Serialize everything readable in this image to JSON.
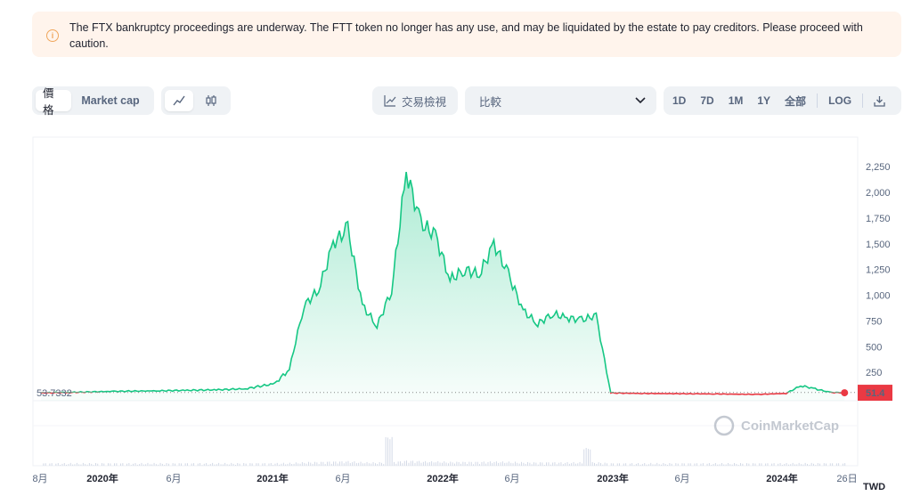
{
  "notice": {
    "icon": "info-icon",
    "text": "The FTX bankruptcy proceedings are underway. The FTT token no longer has any use, and may be liquidated by the estate to pay creditors. Please proceed with caution."
  },
  "toolbar": {
    "price_tab": "價格",
    "marketcap_tab": "Market cap",
    "line_icon": "line-chart-icon",
    "candle_icon": "candlestick-icon",
    "tradingview_label": "交易檢視",
    "compare_label": "比較",
    "ranges": [
      "1D",
      "7D",
      "1M",
      "1Y",
      "全部"
    ],
    "log_label": "LOG",
    "download_icon": "download-icon"
  },
  "chart_data": {
    "type": "line",
    "currency": "TWD",
    "watermark": "CoinMarketCap",
    "y_ticks": [
      "2,250",
      "2,000",
      "1,750",
      "1,500",
      "1,250",
      "1,000",
      "750",
      "500",
      "250"
    ],
    "x_ticks": [
      {
        "label": "8月",
        "bold": false
      },
      {
        "label": "2020年",
        "bold": true
      },
      {
        "label": "6月",
        "bold": false
      },
      {
        "label": "2021年",
        "bold": true
      },
      {
        "label": "6月",
        "bold": false
      },
      {
        "label": "2022年",
        "bold": true
      },
      {
        "label": "6月",
        "bold": false
      },
      {
        "label": "2023年",
        "bold": true
      },
      {
        "label": "6月",
        "bold": false
      },
      {
        "label": "2024年",
        "bold": true
      },
      {
        "label": "26日",
        "bold": false
      }
    ],
    "start_price_label": "53.7332",
    "current_price_label": "51.4",
    "ylim": [
      0,
      2400
    ],
    "up_color": "#16c784",
    "down_color": "#ea3943",
    "series": [
      {
        "x": "2019-08",
        "y": 50
      },
      {
        "x": "2019-10",
        "y": 55
      },
      {
        "x": "2020-01",
        "y": 65
      },
      {
        "x": "2020-04",
        "y": 70
      },
      {
        "x": "2020-06",
        "y": 75
      },
      {
        "x": "2020-08",
        "y": 80
      },
      {
        "x": "2020-10",
        "y": 90
      },
      {
        "x": "2020-12",
        "y": 140
      },
      {
        "x": "2021-01",
        "y": 280
      },
      {
        "x": "2021-02",
        "y": 900
      },
      {
        "x": "2021-03",
        "y": 1050
      },
      {
        "x": "2021-04",
        "y": 1500
      },
      {
        "x": "2021-05",
        "y": 1650
      },
      {
        "x": "2021-06",
        "y": 900
      },
      {
        "x": "2021-07",
        "y": 700
      },
      {
        "x": "2021-08",
        "y": 1050
      },
      {
        "x": "2021-09",
        "y": 2200
      },
      {
        "x": "2021-10",
        "y": 1700
      },
      {
        "x": "2021-11",
        "y": 1580
      },
      {
        "x": "2021-12",
        "y": 1150
      },
      {
        "x": "2022-01",
        "y": 1250
      },
      {
        "x": "2022-02",
        "y": 1200
      },
      {
        "x": "2022-03",
        "y": 1500
      },
      {
        "x": "2022-04",
        "y": 1200
      },
      {
        "x": "2022-05",
        "y": 850
      },
      {
        "x": "2022-06",
        "y": 720
      },
      {
        "x": "2022-07",
        "y": 820
      },
      {
        "x": "2022-08",
        "y": 780
      },
      {
        "x": "2022-09",
        "y": 760
      },
      {
        "x": "2022-10",
        "y": 800
      },
      {
        "x": "2022-11",
        "y": 50
      },
      {
        "x": "2023-01",
        "y": 45
      },
      {
        "x": "2023-06",
        "y": 40
      },
      {
        "x": "2023-09",
        "y": 35
      },
      {
        "x": "2023-11",
        "y": 45
      },
      {
        "x": "2023-12",
        "y": 120
      },
      {
        "x": "2024-01",
        "y": 90
      },
      {
        "x": "2024-02",
        "y": 55
      },
      {
        "x": "2024-03",
        "y": 51.4
      }
    ]
  }
}
